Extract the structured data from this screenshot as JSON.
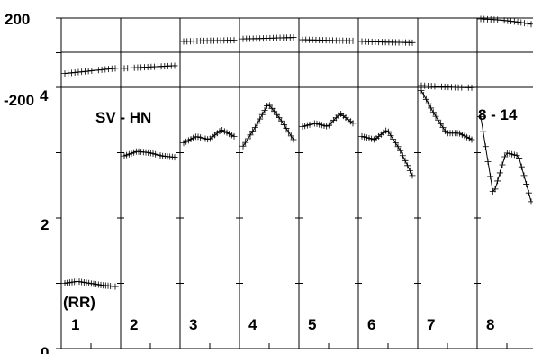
{
  "chart_data": {
    "type": "scatter",
    "panels": {
      "count": 8,
      "labels": [
        "1",
        "2",
        "3",
        "4",
        "5",
        "6",
        "7",
        "8"
      ]
    },
    "annotations": {
      "left": "SV - HN",
      "right": "8 - 14",
      "unit": "(RR)"
    },
    "top_axis": {
      "ylim": [
        -200,
        200
      ],
      "tick_labels": [
        "200",
        "-200"
      ]
    },
    "bottom_axis": {
      "ylim": [
        0,
        4
      ],
      "tick_labels": [
        "4",
        "2",
        "0"
      ]
    },
    "series": [
      {
        "values": [
          [
            -120,
            -110,
            -100,
            -90
          ],
          [
            -90,
            -85,
            -80,
            -75
          ],
          [
            65,
            68,
            70,
            72
          ],
          [
            80,
            82,
            85,
            88
          ],
          [
            75,
            73,
            70,
            68
          ],
          [
            65,
            62,
            60,
            58
          ],
          [
            -190,
            -195,
            -200,
            -202
          ],
          [
            195,
            190,
            180,
            165
          ]
        ]
      },
      {
        "values": [
          [
            1.0,
            1.03,
            1.0,
            0.97,
            0.95
          ],
          [
            2.95,
            3.02,
            3.0,
            2.95,
            2.93
          ],
          [
            3.15,
            3.25,
            3.2,
            3.35,
            3.25
          ],
          [
            3.1,
            3.4,
            3.75,
            3.5,
            3.2
          ],
          [
            3.4,
            3.45,
            3.4,
            3.6,
            3.45
          ],
          [
            3.25,
            3.2,
            3.35,
            3.05,
            2.65
          ],
          [
            3.95,
            3.6,
            3.3,
            3.3,
            3.2
          ],
          [
            3.55,
            2.35,
            3.0,
            2.95,
            2.25
          ]
        ]
      }
    ]
  }
}
